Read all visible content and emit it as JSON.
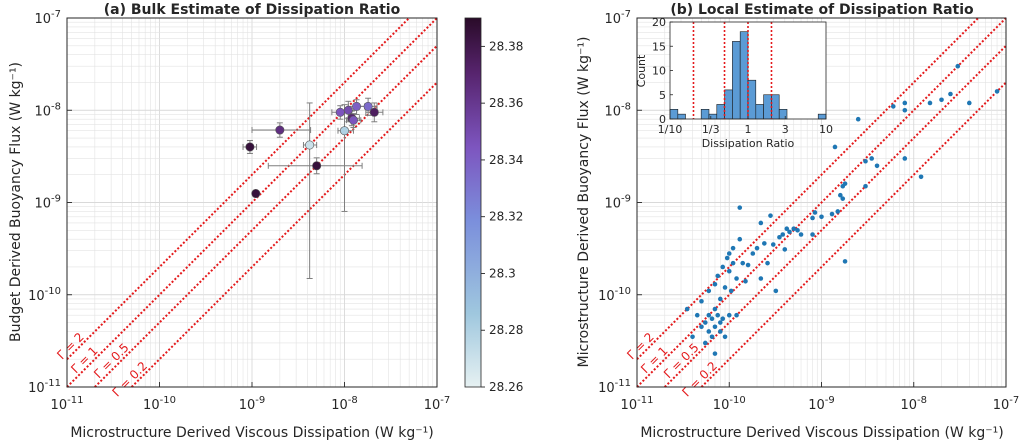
{
  "chart_data": [
    {
      "type": "scatter",
      "title": "(a) Bulk Estimate of Dissipation Ratio",
      "xlabel": "Microstructure Derived Viscous Dissipation (W kg⁻¹)",
      "ylabel": "Budget Derived Buoyancy Flux (W kg⁻¹)",
      "xscale": "log",
      "yscale": "log",
      "xlim": [
        1e-11,
        1e-07
      ],
      "ylim": [
        1e-11,
        1e-07
      ],
      "xticks": [
        {
          "v": 1e-11,
          "base": "10",
          "exp": "-11"
        },
        {
          "v": 1e-10,
          "base": "10",
          "exp": "-10"
        },
        {
          "v": 1e-09,
          "base": "10",
          "exp": "-9"
        },
        {
          "v": 1e-08,
          "base": "10",
          "exp": "-8"
        },
        {
          "v": 1e-07,
          "base": "10",
          "exp": "-7"
        }
      ],
      "yticks": [
        {
          "v": 1e-11,
          "base": "10",
          "exp": "-11"
        },
        {
          "v": 1e-10,
          "base": "10",
          "exp": "-10"
        },
        {
          "v": 1e-09,
          "base": "10",
          "exp": "-9"
        },
        {
          "v": 1e-08,
          "base": "10",
          "exp": "-8"
        },
        {
          "v": 1e-07,
          "base": "10",
          "exp": "-7"
        }
      ],
      "grid": true,
      "ratio_lines": [
        {
          "gamma": 2,
          "label": "Γ = 2"
        },
        {
          "gamma": 1,
          "label": "Γ = 1"
        },
        {
          "gamma": 0.5,
          "label": "Γ = 0.5"
        },
        {
          "gamma": 0.2,
          "label": "Γ = 0.2"
        }
      ],
      "colorbar": {
        "min": 28.26,
        "max": 28.39,
        "ticks": [
          "28.26",
          "28.28",
          "28.3",
          "28.32",
          "28.34",
          "28.36",
          "28.38"
        ]
      },
      "points": [
        {
          "x": 1.1e-09,
          "y": 1.25e-09,
          "c": 28.385
        },
        {
          "x": 9.5e-10,
          "y": 4e-09,
          "c": 28.385,
          "xerr": [
            8e-10,
            1.12e-09
          ],
          "yerr": [
            3.4e-09,
            4.7e-09
          ]
        },
        {
          "x": 2e-09,
          "y": 6.1e-09,
          "c": 28.365,
          "xerr": [
            1e-09,
            4.3e-09
          ],
          "yerr": [
            5.1e-09,
            7.3e-09
          ]
        },
        {
          "x": 5e-09,
          "y": 2.5e-09,
          "c": 28.385,
          "xerr": [
            1.5e-09,
            1.55e-08
          ],
          "yerr": [
            2.05e-09,
            3.05e-09
          ]
        },
        {
          "x": 4.2e-09,
          "y": 4.2e-09,
          "c": 28.27,
          "xerr": [
            3.6e-09,
            5e-09
          ],
          "yerr": [
            1.5e-10,
            1.2e-08
          ]
        },
        {
          "x": 9e-09,
          "y": 9.5e-09,
          "c": 28.345,
          "xerr": [
            7.3e-09,
            1.1e-08
          ],
          "yerr": [
            8e-09,
            1.12e-08
          ]
        },
        {
          "x": 1e-08,
          "y": 6e-09,
          "c": 28.28,
          "xerr": [
            8.5e-09,
            1.25e-08
          ],
          "yerr": [
            8e-10,
            1.15e-08
          ]
        },
        {
          "x": 1.1e-08,
          "y": 1e-08,
          "c": 28.35,
          "xerr": [
            9e-09,
            1.35e-08
          ],
          "yerr": [
            7.5e-09,
            1.25e-08
          ]
        },
        {
          "x": 1.2e-08,
          "y": 8.2e-09,
          "c": 28.37,
          "xerr": [
            1e-08,
            1.45e-08
          ],
          "yerr": [
            6.8e-09,
            9.8e-09
          ]
        },
        {
          "x": 1.35e-08,
          "y": 1.1e-08,
          "c": 28.34,
          "xerr": [
            1.1e-08,
            1.65e-08
          ],
          "yerr": [
            9e-09,
            1.3e-08
          ]
        },
        {
          "x": 1.25e-08,
          "y": 7.8e-09,
          "c": 28.345,
          "xerr": [
            1.05e-08,
            1.5e-08
          ],
          "yerr": [
            6.5e-09,
            9.2e-09
          ]
        },
        {
          "x": 1.8e-08,
          "y": 1.1e-08,
          "c": 28.335,
          "xerr": [
            1.45e-08,
            2.25e-08
          ],
          "yerr": [
            8.8e-09,
            1.35e-08
          ]
        },
        {
          "x": 2.1e-08,
          "y": 9.5e-09,
          "c": 28.375,
          "xerr": [
            1.7e-08,
            2.6e-08
          ],
          "yerr": [
            7.5e-09,
            1.2e-08
          ]
        }
      ]
    },
    {
      "type": "scatter",
      "title": "(b) Local Estimate of Dissipation Ratio",
      "xlabel": "Microstructure Derived Viscous Dissipation (W kg⁻¹)",
      "ylabel": "Microstructure Derived Buoyancy Flux (W kg⁻¹)",
      "xscale": "log",
      "yscale": "log",
      "xlim": [
        1e-11,
        1e-07
      ],
      "ylim": [
        1e-11,
        1e-07
      ],
      "xticks": [
        {
          "v": 1e-11,
          "base": "10",
          "exp": "-11"
        },
        {
          "v": 1e-10,
          "base": "10",
          "exp": "-10"
        },
        {
          "v": 1e-09,
          "base": "10",
          "exp": "-9"
        },
        {
          "v": 1e-08,
          "base": "10",
          "exp": "-8"
        },
        {
          "v": 1e-07,
          "base": "10",
          "exp": "-7"
        }
      ],
      "yticks": [
        {
          "v": 1e-11,
          "base": "10",
          "exp": "-11"
        },
        {
          "v": 1e-10,
          "base": "10",
          "exp": "-10"
        },
        {
          "v": 1e-09,
          "base": "10",
          "exp": "-9"
        },
        {
          "v": 1e-08,
          "base": "10",
          "exp": "-8"
        },
        {
          "v": 1e-07,
          "base": "10",
          "exp": "-7"
        }
      ],
      "grid": true,
      "ratio_lines": [
        {
          "gamma": 2,
          "label": "Γ = 2"
        },
        {
          "gamma": 1,
          "label": "Γ = 1"
        },
        {
          "gamma": 0.5,
          "label": "Γ = 0.5"
        },
        {
          "gamma": 0.2,
          "label": "Γ = 0.2"
        }
      ],
      "points": [
        [
          3.5e-11,
          7e-11
        ],
        [
          4e-11,
          3.5e-11
        ],
        [
          4.5e-11,
          6e-11
        ],
        [
          5e-11,
          8.5e-11
        ],
        [
          5e-11,
          4.5e-11
        ],
        [
          5.5e-11,
          5e-11
        ],
        [
          5.5e-11,
          3e-11
        ],
        [
          6e-11,
          6e-11
        ],
        [
          6e-11,
          1.1e-10
        ],
        [
          6e-11,
          4e-11
        ],
        [
          6.5e-11,
          5.5e-11
        ],
        [
          6.5e-11,
          3.5e-11
        ],
        [
          7e-11,
          7e-11
        ],
        [
          7e-11,
          1.3e-10
        ],
        [
          7e-11,
          4.5e-11
        ],
        [
          7e-11,
          2.3e-11
        ],
        [
          7.5e-11,
          6e-11
        ],
        [
          7.5e-11,
          1.6e-10
        ],
        [
          8e-11,
          4e-11
        ],
        [
          8e-11,
          5e-11
        ],
        [
          8e-11,
          9e-11
        ],
        [
          8.5e-11,
          5.5e-11
        ],
        [
          8.5e-11,
          2e-10
        ],
        [
          9e-11,
          1.2e-10
        ],
        [
          9e-11,
          3.5e-11
        ],
        [
          9.5e-11,
          2.5e-10
        ],
        [
          1e-10,
          6e-11
        ],
        [
          1e-10,
          1.8e-10
        ],
        [
          1e-10,
          2.8e-10
        ],
        [
          1.05e-10,
          1.1e-10
        ],
        [
          1.1e-10,
          3.2e-10
        ],
        [
          1.1e-10,
          2.2e-10
        ],
        [
          1.2e-10,
          1.5e-10
        ],
        [
          1.2e-10,
          6e-11
        ],
        [
          1.3e-10,
          8.8e-10
        ],
        [
          1.3e-10,
          4e-10
        ],
        [
          1.4e-10,
          2.2e-10
        ],
        [
          1.5e-10,
          1.4e-10
        ],
        [
          1.6e-10,
          2.1e-10
        ],
        [
          1.8e-10,
          2.8e-10
        ],
        [
          2e-10,
          3.2e-10
        ],
        [
          2.2e-10,
          6e-10
        ],
        [
          2.2e-10,
          1.5e-10
        ],
        [
          2.4e-10,
          3.6e-10
        ],
        [
          2.6e-10,
          2.2e-10
        ],
        [
          2.8e-10,
          7.2e-10
        ],
        [
          3e-10,
          3.5e-10
        ],
        [
          3.2e-10,
          1.1e-10
        ],
        [
          3.5e-10,
          4.2e-10
        ],
        [
          3.8e-10,
          4.5e-10
        ],
        [
          4e-10,
          3.1e-10
        ],
        [
          4.2e-10,
          5.2e-10
        ],
        [
          4.5e-10,
          4.8e-10
        ],
        [
          5e-10,
          5.2e-10
        ],
        [
          5.5e-10,
          5e-10
        ],
        [
          6e-10,
          4.5e-10
        ],
        [
          8e-10,
          4.5e-10
        ],
        [
          8e-10,
          6.8e-10
        ],
        [
          8.5e-10,
          7.8e-10
        ],
        [
          1e-09,
          7e-10
        ],
        [
          1.3e-09,
          7.5e-10
        ],
        [
          1.4e-09,
          4e-09
        ],
        [
          1.5e-09,
          8e-10
        ],
        [
          1.6e-09,
          1.2e-09
        ],
        [
          1.7e-09,
          1.1e-09
        ],
        [
          1.7e-09,
          1.5e-09
        ],
        [
          1.8e-09,
          2.3e-10
        ],
        [
          1.8e-09,
          1.6e-09
        ],
        [
          2.5e-09,
          8e-09
        ],
        [
          3e-09,
          2.8e-09
        ],
        [
          3e-09,
          1.5e-09
        ],
        [
          3.5e-09,
          3e-09
        ],
        [
          4e-09,
          2.5e-09
        ],
        [
          6e-09,
          1.1e-08
        ],
        [
          8e-09,
          3e-09
        ],
        [
          8e-09,
          1e-08
        ],
        [
          8e-09,
          1.2e-08
        ],
        [
          1.2e-08,
          1.9e-09
        ],
        [
          1.5e-08,
          1.2e-08
        ],
        [
          2e-08,
          1.3e-08
        ],
        [
          2.5e-08,
          1.5e-08
        ],
        [
          3e-08,
          3e-08
        ],
        [
          4e-08,
          1.2e-08
        ],
        [
          8e-08,
          1.6e-08
        ]
      ]
    }
  ],
  "inset": {
    "type": "histogram",
    "xscale": "log",
    "xlabel": "Dissipation Ratio",
    "ylabel": "Count",
    "xlim": [
      0.1,
      10
    ],
    "ylim": [
      0,
      20
    ],
    "xticks": [
      {
        "v": 0.1,
        "label": "1/10"
      },
      {
        "v": 0.3333,
        "label": "1/3"
      },
      {
        "v": 1,
        "label": "1"
      },
      {
        "v": 3,
        "label": "3"
      },
      {
        "v": 10,
        "label": "10"
      }
    ],
    "yticks": [
      0,
      5,
      10,
      15,
      20
    ],
    "bins": [
      {
        "lo": 0.1,
        "hi": 0.126,
        "count": 2
      },
      {
        "lo": 0.126,
        "hi": 0.158,
        "count": 1
      },
      {
        "lo": 0.158,
        "hi": 0.2,
        "count": 0
      },
      {
        "lo": 0.2,
        "hi": 0.251,
        "count": 0
      },
      {
        "lo": 0.251,
        "hi": 0.316,
        "count": 2
      },
      {
        "lo": 0.316,
        "hi": 0.398,
        "count": 1
      },
      {
        "lo": 0.398,
        "hi": 0.501,
        "count": 3
      },
      {
        "lo": 0.501,
        "hi": 0.631,
        "count": 6
      },
      {
        "lo": 0.631,
        "hi": 0.794,
        "count": 16
      },
      {
        "lo": 0.794,
        "hi": 1.0,
        "count": 18
      },
      {
        "lo": 1.0,
        "hi": 1.259,
        "count": 8
      },
      {
        "lo": 1.259,
        "hi": 1.585,
        "count": 3
      },
      {
        "lo": 1.585,
        "hi": 1.995,
        "count": 5
      },
      {
        "lo": 1.995,
        "hi": 2.512,
        "count": 5
      },
      {
        "lo": 2.512,
        "hi": 3.162,
        "count": 2
      },
      {
        "lo": 3.162,
        "hi": 3.981,
        "count": 0
      },
      {
        "lo": 3.981,
        "hi": 5.012,
        "count": 0
      },
      {
        "lo": 5.012,
        "hi": 6.31,
        "count": 0
      },
      {
        "lo": 6.31,
        "hi": 7.943,
        "count": 0
      },
      {
        "lo": 7.943,
        "hi": 10,
        "count": 1
      }
    ],
    "ref_lines": [
      0.2,
      0.5,
      1,
      2
    ]
  },
  "colors": {
    "ratio_line": "#e41a1c",
    "scatter_b": "#1f77b4",
    "bar": "#5b9bd5",
    "grid": "#e3e3e3",
    "errorbar": "#7f7f7f",
    "text": "#262626"
  }
}
